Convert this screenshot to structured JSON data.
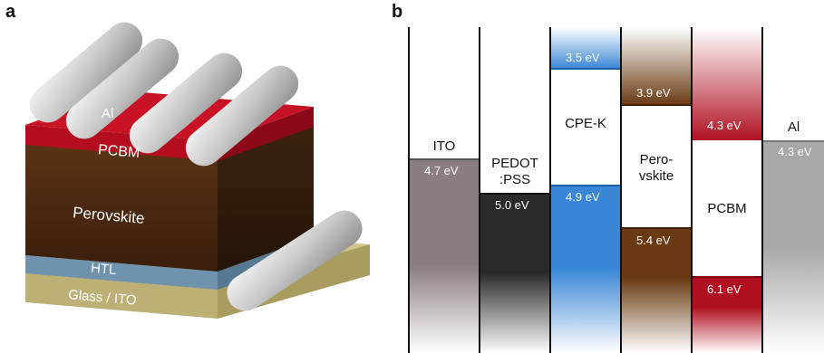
{
  "panels": {
    "a": "a",
    "b": "b"
  },
  "device_layers": {
    "electrode": "Al",
    "etl": "PCBM",
    "absorber": "Perovskite",
    "htl": "HTL",
    "substrate": "Glass / ITO"
  },
  "energy_levels": {
    "ito": {
      "name": "ITO",
      "level": "4.7 eV"
    },
    "pedot": {
      "name_line1": "PEDOT",
      "name_line2": ":PSS",
      "level": "5.0 eV"
    },
    "cpek": {
      "name": "CPE-K",
      "top": "3.5 eV",
      "bottom": "4.9 eV"
    },
    "perov": {
      "name_line1": "Pero-",
      "name_line2": "vskite",
      "top": "3.9 eV",
      "bottom": "5.4 eV"
    },
    "pcbm": {
      "name": "PCBM",
      "top": "4.3 eV",
      "bottom": "6.1 eV"
    },
    "al": {
      "name": "Al",
      "level": "4.3 eV"
    }
  },
  "colors": {
    "ito": "#8a7f7d",
    "pedot": "#2a2a2a",
    "cpek": "#3a86d6",
    "perov": "#6a3a12",
    "pcbm": "#b01020",
    "al": "#a8a8a8"
  }
}
